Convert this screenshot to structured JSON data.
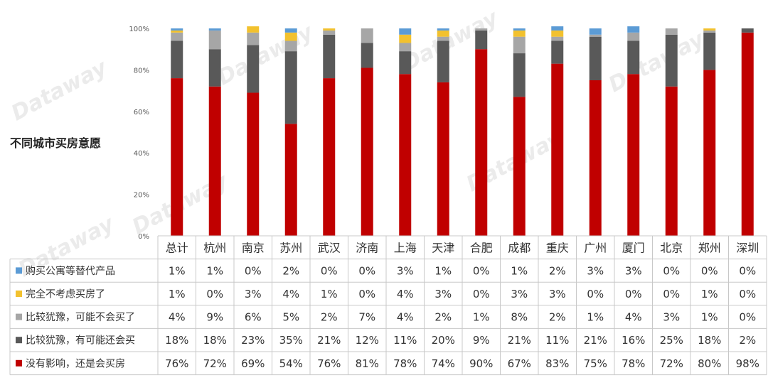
{
  "title": "不同城市买房意愿",
  "watermark": "Dataway",
  "chart_data": {
    "type": "bar",
    "stacked": true,
    "percent": true,
    "ylim": [
      0,
      100
    ],
    "y_ticks": [
      "0%",
      "20%",
      "40%",
      "60%",
      "80%",
      "100%"
    ],
    "legend_placement": "table-left",
    "grid": false,
    "categories": [
      "总计",
      "杭州",
      "南京",
      "苏州",
      "武汉",
      "济南",
      "上海",
      "天津",
      "合肥",
      "成都",
      "重庆",
      "广州",
      "厦门",
      "北京",
      "郑州",
      "深圳"
    ],
    "series": [
      {
        "name": "没有影响，还是会买房",
        "color": "#c00000",
        "values": [
          76,
          72,
          69,
          54,
          76,
          81,
          78,
          74,
          90,
          67,
          83,
          75,
          78,
          72,
          80,
          98
        ]
      },
      {
        "name": "比较犹豫，有可能还会买",
        "color": "#595959",
        "values": [
          18,
          18,
          23,
          35,
          21,
          12,
          11,
          20,
          9,
          21,
          11,
          21,
          16,
          25,
          18,
          2
        ]
      },
      {
        "name": "比较犹豫，可能不会买了",
        "color": "#a6a6a6",
        "values": [
          4,
          9,
          6,
          5,
          2,
          7,
          4,
          2,
          1,
          8,
          2,
          1,
          4,
          3,
          1,
          0
        ]
      },
      {
        "name": "完全不考虑买房了",
        "color": "#f2c12e",
        "values": [
          1,
          0,
          3,
          4,
          1,
          0,
          4,
          3,
          0,
          3,
          3,
          0,
          0,
          0,
          1,
          0
        ]
      },
      {
        "name": "购买公寓等替代产品",
        "color": "#5b9bd5",
        "values": [
          1,
          1,
          0,
          2,
          0,
          0,
          3,
          1,
          0,
          1,
          2,
          3,
          3,
          0,
          0,
          0
        ]
      }
    ],
    "table_rows": [
      {
        "label": "购买公寓等替代产品",
        "color": "#5b9bd5",
        "cells": [
          "1%",
          "1%",
          "0%",
          "2%",
          "0%",
          "0%",
          "3%",
          "1%",
          "0%",
          "1%",
          "2%",
          "3%",
          "3%",
          "0%",
          "0%",
          "0%"
        ]
      },
      {
        "label": "完全不考虑买房了",
        "color": "#f2c12e",
        "cells": [
          "1%",
          "0%",
          "3%",
          "4%",
          "1%",
          "0%",
          "4%",
          "3%",
          "0%",
          "3%",
          "3%",
          "0%",
          "0%",
          "0%",
          "1%",
          "0%"
        ]
      },
      {
        "label": "比较犹豫，可能不会买了",
        "color": "#a6a6a6",
        "cells": [
          "4%",
          "9%",
          "6%",
          "5%",
          "2%",
          "7%",
          "4%",
          "2%",
          "1%",
          "8%",
          "2%",
          "1%",
          "4%",
          "3%",
          "1%",
          "0%"
        ]
      },
      {
        "label": "比较犹豫，有可能还会买",
        "color": "#595959",
        "cells": [
          "18%",
          "18%",
          "23%",
          "35%",
          "21%",
          "12%",
          "11%",
          "20%",
          "9%",
          "21%",
          "11%",
          "21%",
          "16%",
          "25%",
          "18%",
          "2%"
        ]
      },
      {
        "label": "没有影响，还是会买房",
        "color": "#c00000",
        "cells": [
          "76%",
          "72%",
          "69%",
          "54%",
          "76%",
          "81%",
          "78%",
          "74%",
          "90%",
          "67%",
          "83%",
          "75%",
          "78%",
          "72%",
          "80%",
          "98%"
        ]
      }
    ]
  }
}
